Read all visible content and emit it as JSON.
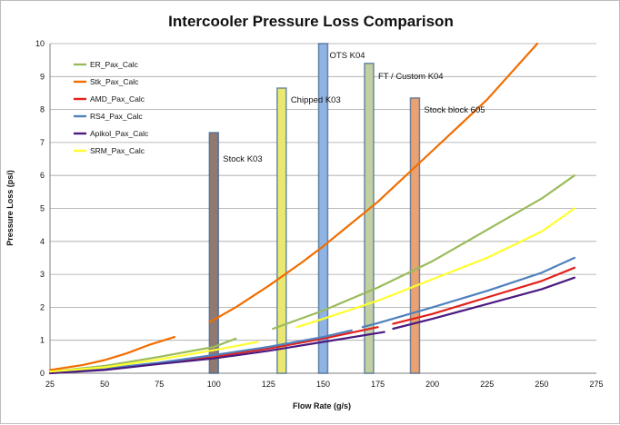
{
  "chart_data": {
    "type": "line",
    "title": "Intercooler Pressure Loss Comparison",
    "xlabel": "Flow Rate (g/s)",
    "ylabel": "Pressure Loss (psi)",
    "xlim": [
      25,
      275
    ],
    "ylim": [
      0,
      10
    ],
    "xticks": [
      "25",
      "50",
      "75",
      "100",
      "125",
      "150",
      "175",
      "200",
      "225",
      "250",
      "275"
    ],
    "yticks": [
      "0",
      "1",
      "2",
      "3",
      "4",
      "5",
      "6",
      "7",
      "8",
      "9",
      "10"
    ],
    "grid": true,
    "legend_position": "top-left",
    "series": [
      {
        "name": "ER_Pax_Calc",
        "color": "#9bbb59",
        "segments": [
          [
            [
              25,
              0.05
            ],
            [
              50,
              0.22
            ],
            [
              75,
              0.5
            ],
            [
              100,
              0.8
            ],
            [
              110,
              1.05
            ]
          ],
          [
            [
              127,
              1.35
            ],
            [
              150,
              1.9
            ],
            [
              175,
              2.6
            ],
            [
              200,
              3.4
            ],
            [
              225,
              4.35
            ],
            [
              250,
              5.3
            ],
            [
              265,
              6.0
            ]
          ]
        ]
      },
      {
        "name": "Stk_Pax_Calc",
        "color": "#f26d00",
        "segments": [
          [
            [
              25,
              0.1
            ],
            [
              40,
              0.25
            ],
            [
              50,
              0.4
            ],
            [
              60,
              0.6
            ],
            [
              70,
              0.85
            ],
            [
              82,
              1.1
            ]
          ],
          [
            [
              98,
              1.55
            ],
            [
              110,
              2.0
            ],
            [
              125,
              2.65
            ],
            [
              140,
              3.35
            ],
            [
              150,
              3.85
            ],
            [
              175,
              5.2
            ],
            [
              200,
              6.75
            ],
            [
              225,
              8.3
            ],
            [
              248,
              10.0
            ]
          ]
        ]
      },
      {
        "name": "AMD_Pax_Calc",
        "color": "#e3201b",
        "segments": [
          [
            [
              25,
              0.02
            ],
            [
              50,
              0.13
            ],
            [
              75,
              0.3
            ],
            [
              100,
              0.5
            ],
            [
              125,
              0.75
            ],
            [
              150,
              1.05
            ],
            [
              175,
              1.4
            ]
          ],
          [
            [
              182,
              1.5
            ],
            [
              200,
              1.8
            ],
            [
              225,
              2.3
            ],
            [
              250,
              2.8
            ],
            [
              265,
              3.2
            ]
          ]
        ]
      },
      {
        "name": "RS4_Pax_Calc",
        "color": "#4f81bd",
        "segments": [
          [
            [
              25,
              0.02
            ],
            [
              50,
              0.14
            ],
            [
              75,
              0.32
            ],
            [
              100,
              0.55
            ],
            [
              125,
              0.8
            ],
            [
              150,
              1.1
            ],
            [
              163,
              1.3
            ]
          ],
          [
            [
              168,
              1.4
            ],
            [
              175,
              1.52
            ],
            [
              200,
              2.0
            ],
            [
              225,
              2.5
            ],
            [
              250,
              3.05
            ],
            [
              265,
              3.5
            ]
          ]
        ]
      },
      {
        "name": "Apikol_Pax_Calc",
        "color": "#4b1a80",
        "segments": [
          [
            [
              25,
              0.0
            ],
            [
              50,
              0.1
            ],
            [
              75,
              0.28
            ],
            [
              100,
              0.45
            ],
            [
              125,
              0.68
            ],
            [
              150,
              0.95
            ],
            [
              178,
              1.25
            ]
          ],
          [
            [
              182,
              1.35
            ],
            [
              200,
              1.65
            ],
            [
              225,
              2.1
            ],
            [
              250,
              2.55
            ],
            [
              265,
              2.9
            ]
          ]
        ]
      },
      {
        "name": "SRM_Pax_Calc",
        "color": "#ffff2e",
        "segments": [
          [
            [
              25,
              0.05
            ],
            [
              50,
              0.18
            ],
            [
              75,
              0.42
            ],
            [
              100,
              0.7
            ],
            [
              120,
              0.95
            ]
          ],
          [
            [
              138,
              1.4
            ],
            [
              150,
              1.65
            ],
            [
              175,
              2.2
            ],
            [
              200,
              2.85
            ],
            [
              225,
              3.5
            ],
            [
              250,
              4.3
            ],
            [
              265,
              5.0
            ]
          ]
        ]
      }
    ],
    "bars": [
      {
        "label": "Stock K03",
        "x": 100,
        "value": 7.3,
        "color": "#8e7a73"
      },
      {
        "label": "Chipped K03",
        "x": 131,
        "value": 8.65,
        "color": "#e8e872"
      },
      {
        "label": "OTS K04",
        "x": 150,
        "value": 10.0,
        "color": "#8fb4e3"
      },
      {
        "label": "FT / Custom K04",
        "x": 171,
        "value": 9.4,
        "color": "#c2cfa3"
      },
      {
        "label": "Stock block 605",
        "x": 192,
        "value": 8.35,
        "color": "#e9a272"
      }
    ]
  }
}
